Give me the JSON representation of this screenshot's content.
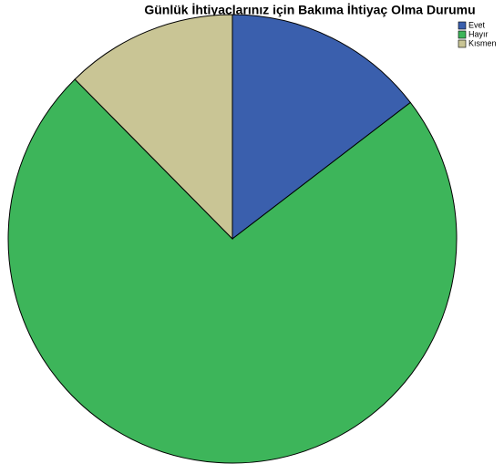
{
  "chart_data": {
    "type": "pie",
    "title": "Günlük İhtiyaçlarınız için Bakıma İhtiyaç Olma Durumu",
    "categories": [
      "Evet",
      "Hayır",
      "Kısmen"
    ],
    "values": [
      14.6,
      73.0,
      12.4
    ],
    "colors": [
      "#3a5fad",
      "#3db55a",
      "#c9c595"
    ],
    "legend": "top-right"
  }
}
